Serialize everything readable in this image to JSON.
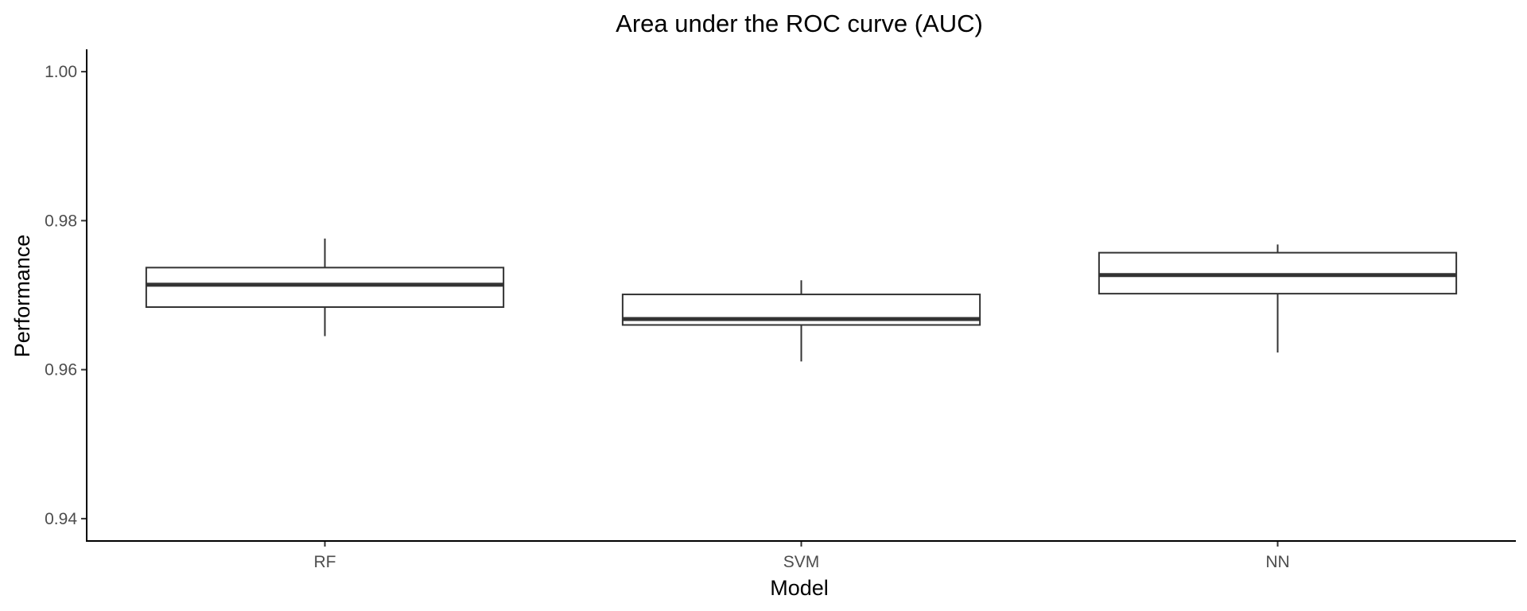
{
  "chart_data": {
    "type": "boxplot",
    "title": "Area under the ROC curve (AUC)",
    "xlabel": "Model",
    "ylabel": "Performance",
    "ylim": [
      0.937,
      1.003
    ],
    "yticks": [
      0.94,
      0.96,
      0.98,
      1.0
    ],
    "ytick_labels": [
      "0.94",
      "0.96",
      "0.98",
      "1.00"
    ],
    "grid": false,
    "categories": [
      "RF",
      "SVM",
      "NN"
    ],
    "boxes": [
      {
        "category": "RF",
        "min": 0.9645,
        "q1": 0.9684,
        "median": 0.9714,
        "q3": 0.9737,
        "max": 0.9776
      },
      {
        "category": "SVM",
        "min": 0.9611,
        "q1": 0.966,
        "median": 0.9668,
        "q3": 0.9701,
        "max": 0.972
      },
      {
        "category": "NN",
        "min": 0.9623,
        "q1": 0.9702,
        "median": 0.9727,
        "q3": 0.9757,
        "max": 0.9768
      }
    ]
  }
}
